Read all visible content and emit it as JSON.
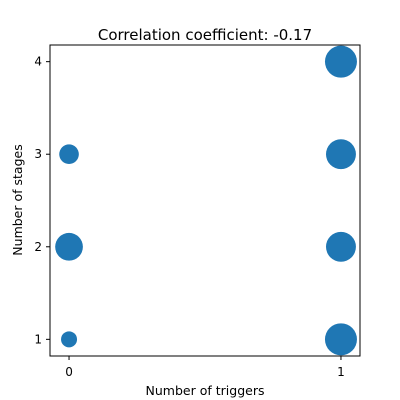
{
  "chart_data": {
    "type": "scatter",
    "title": "Correlation coefficient: -0.17",
    "xlabel": "Number of triggers",
    "ylabel": "Number of stages",
    "xlim": [
      -0.07,
      1.07
    ],
    "ylim": [
      0.82,
      4.18
    ],
    "x_ticks": [
      0,
      1
    ],
    "y_ticks": [
      1,
      2,
      3,
      4
    ],
    "x_tick_labels": [
      "0",
      "1"
    ],
    "y_tick_labels": [
      "1",
      "2",
      "3",
      "4"
    ],
    "grid": false,
    "legend": "none",
    "marker_color": "#1f77b4",
    "note": "Marker area scales with the number of observations at each point (relative sizes).",
    "points": [
      {
        "x": 0,
        "y": 1,
        "count": 1
      },
      {
        "x": 0,
        "y": 2,
        "count": 3
      },
      {
        "x": 0,
        "y": 3,
        "count": 1.5
      },
      {
        "x": 1,
        "y": 1,
        "count": 4
      },
      {
        "x": 1,
        "y": 2,
        "count": 3.5
      },
      {
        "x": 1,
        "y": 3,
        "count": 3.5
      },
      {
        "x": 1,
        "y": 4,
        "count": 4
      }
    ]
  }
}
